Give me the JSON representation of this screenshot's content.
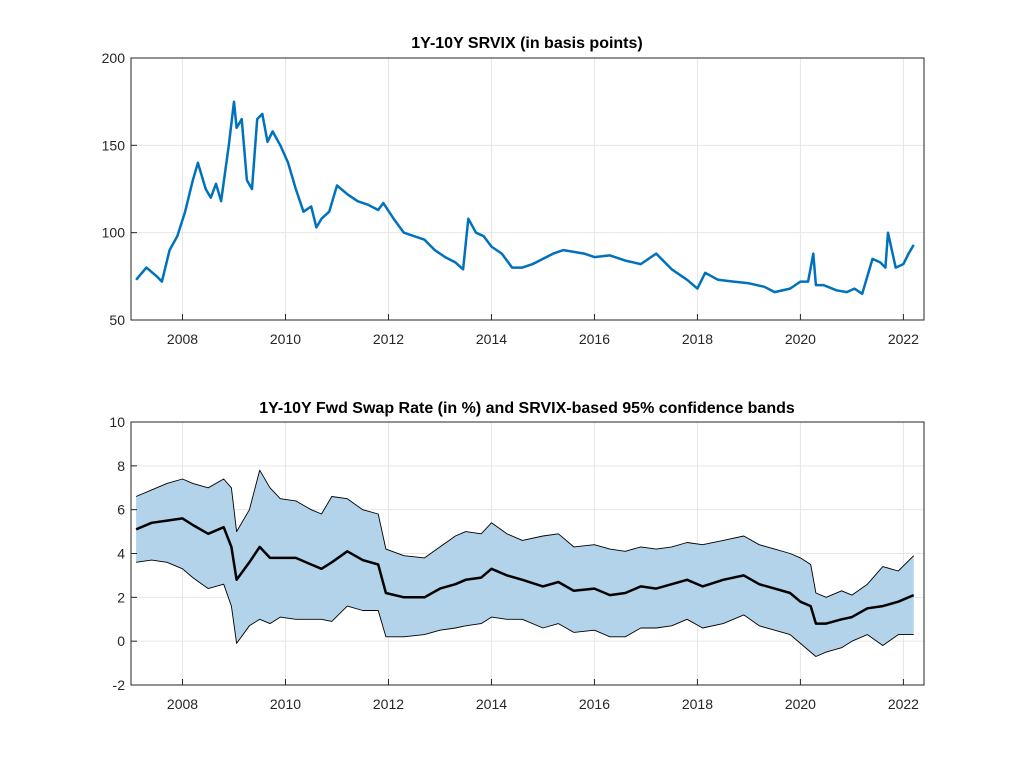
{
  "chart_data": [
    {
      "type": "line",
      "title": "1Y-10Y SRVIX (in basis points)",
      "xlabel": "",
      "ylabel": "",
      "xlim": [
        2007.0,
        2022.4
      ],
      "ylim": [
        50,
        200
      ],
      "xticks": [
        2008,
        2010,
        2012,
        2014,
        2016,
        2018,
        2020,
        2022
      ],
      "yticks": [
        50,
        100,
        150,
        200
      ],
      "grid": true,
      "color": "#0072BD",
      "series": [
        {
          "x": [
            2007.1,
            2007.3,
            2007.5,
            2007.6,
            2007.75,
            2007.9,
            2008.05,
            2008.2,
            2008.3,
            2008.45,
            2008.55,
            2008.65,
            2008.75,
            2008.9,
            2009.0,
            2009.05,
            2009.15,
            2009.25,
            2009.35,
            2009.45,
            2009.55,
            2009.65,
            2009.75,
            2009.9,
            2010.05,
            2010.2,
            2010.35,
            2010.5,
            2010.6,
            2010.7,
            2010.85,
            2011.0,
            2011.2,
            2011.4,
            2011.6,
            2011.8,
            2011.9,
            2012.1,
            2012.3,
            2012.5,
            2012.7,
            2012.9,
            2013.1,
            2013.3,
            2013.45,
            2013.55,
            2013.7,
            2013.85,
            2014.0,
            2014.2,
            2014.4,
            2014.6,
            2014.8,
            2015.0,
            2015.2,
            2015.4,
            2015.6,
            2015.8,
            2016.0,
            2016.3,
            2016.6,
            2016.9,
            2017.2,
            2017.5,
            2017.8,
            2018.0,
            2018.15,
            2018.4,
            2018.7,
            2019.0,
            2019.3,
            2019.5,
            2019.8,
            2020.0,
            2020.15,
            2020.25,
            2020.3,
            2020.45,
            2020.7,
            2020.9,
            2021.05,
            2021.2,
            2021.4,
            2021.55,
            2021.65,
            2021.7,
            2021.85,
            2022.0,
            2022.1,
            2022.2
          ],
          "y": [
            73,
            80,
            75,
            72,
            90,
            98,
            112,
            130,
            140,
            125,
            120,
            128,
            118,
            150,
            175,
            160,
            165,
            130,
            125,
            165,
            168,
            152,
            158,
            150,
            140,
            125,
            112,
            115,
            103,
            108,
            112,
            127,
            122,
            118,
            116,
            113,
            117,
            108,
            100,
            98,
            96,
            90,
            86,
            83,
            79,
            108,
            100,
            98,
            92,
            88,
            80,
            80,
            82,
            85,
            88,
            90,
            89,
            88,
            86,
            87,
            84,
            82,
            88,
            79,
            73,
            68,
            77,
            73,
            72,
            71,
            69,
            66,
            68,
            72,
            72,
            88,
            70,
            70,
            67,
            66,
            68,
            65,
            85,
            83,
            80,
            100,
            80,
            82,
            88,
            93
          ]
        }
      ]
    },
    {
      "type": "area",
      "title": "1Y-10Y Fwd Swap Rate (in %) and SRVIX-based 95% confidence bands",
      "xlabel": "",
      "ylabel": "",
      "xlim": [
        2007.0,
        2022.4
      ],
      "ylim": [
        -2,
        10
      ],
      "xticks": [
        2008,
        2010,
        2012,
        2014,
        2016,
        2018,
        2020,
        2022
      ],
      "yticks": [
        -2,
        0,
        2,
        4,
        6,
        8,
        10
      ],
      "grid": true,
      "band_color": "#b3d3ea",
      "line_color": "#000000",
      "x": [
        2007.1,
        2007.4,
        2007.7,
        2008.0,
        2008.2,
        2008.5,
        2008.8,
        2008.95,
        2009.05,
        2009.3,
        2009.5,
        2009.7,
        2009.9,
        2010.2,
        2010.5,
        2010.7,
        2010.9,
        2011.2,
        2011.5,
        2011.8,
        2011.95,
        2012.3,
        2012.7,
        2013.0,
        2013.3,
        2013.5,
        2013.8,
        2014.0,
        2014.3,
        2014.6,
        2015.0,
        2015.3,
        2015.6,
        2016.0,
        2016.3,
        2016.6,
        2016.9,
        2017.2,
        2017.5,
        2017.8,
        2018.1,
        2018.5,
        2018.9,
        2019.2,
        2019.5,
        2019.8,
        2020.0,
        2020.2,
        2020.3,
        2020.5,
        2020.8,
        2021.0,
        2021.3,
        2021.6,
        2021.9,
        2022.2
      ],
      "series": [
        {
          "name": "upper",
          "values": [
            6.6,
            6.9,
            7.2,
            7.4,
            7.2,
            7.0,
            7.4,
            7.0,
            5.0,
            6.0,
            7.8,
            7.0,
            6.5,
            6.4,
            6.0,
            5.8,
            6.6,
            6.5,
            6.0,
            5.8,
            4.2,
            3.9,
            3.8,
            4.3,
            4.8,
            5.0,
            4.9,
            5.4,
            4.9,
            4.6,
            4.8,
            4.9,
            4.3,
            4.4,
            4.2,
            4.1,
            4.3,
            4.2,
            4.3,
            4.5,
            4.4,
            4.6,
            4.8,
            4.4,
            4.2,
            4.0,
            3.8,
            3.5,
            2.2,
            2.0,
            2.3,
            2.1,
            2.6,
            3.4,
            3.2,
            3.9
          ]
        },
        {
          "name": "rate",
          "values": [
            5.1,
            5.4,
            5.5,
            5.6,
            5.3,
            4.9,
            5.2,
            4.3,
            2.8,
            3.6,
            4.3,
            3.8,
            3.8,
            3.8,
            3.5,
            3.3,
            3.6,
            4.1,
            3.7,
            3.5,
            2.2,
            2.0,
            2.0,
            2.4,
            2.6,
            2.8,
            2.9,
            3.3,
            3.0,
            2.8,
            2.5,
            2.7,
            2.3,
            2.4,
            2.1,
            2.2,
            2.5,
            2.4,
            2.6,
            2.8,
            2.5,
            2.8,
            3.0,
            2.6,
            2.4,
            2.2,
            1.8,
            1.6,
            0.8,
            0.8,
            1.0,
            1.1,
            1.5,
            1.6,
            1.8,
            2.1
          ]
        },
        {
          "name": "lower",
          "values": [
            3.6,
            3.7,
            3.6,
            3.3,
            2.9,
            2.4,
            2.6,
            1.6,
            -0.1,
            0.7,
            1.0,
            0.8,
            1.1,
            1.0,
            1.0,
            1.0,
            0.9,
            1.6,
            1.4,
            1.4,
            0.2,
            0.2,
            0.3,
            0.5,
            0.6,
            0.7,
            0.8,
            1.1,
            1.0,
            1.0,
            0.6,
            0.8,
            0.4,
            0.5,
            0.2,
            0.2,
            0.6,
            0.6,
            0.7,
            1.0,
            0.6,
            0.8,
            1.2,
            0.7,
            0.5,
            0.3,
            -0.1,
            -0.5,
            -0.7,
            -0.5,
            -0.3,
            0.0,
            0.3,
            -0.2,
            0.3,
            0.3
          ]
        }
      ]
    }
  ]
}
